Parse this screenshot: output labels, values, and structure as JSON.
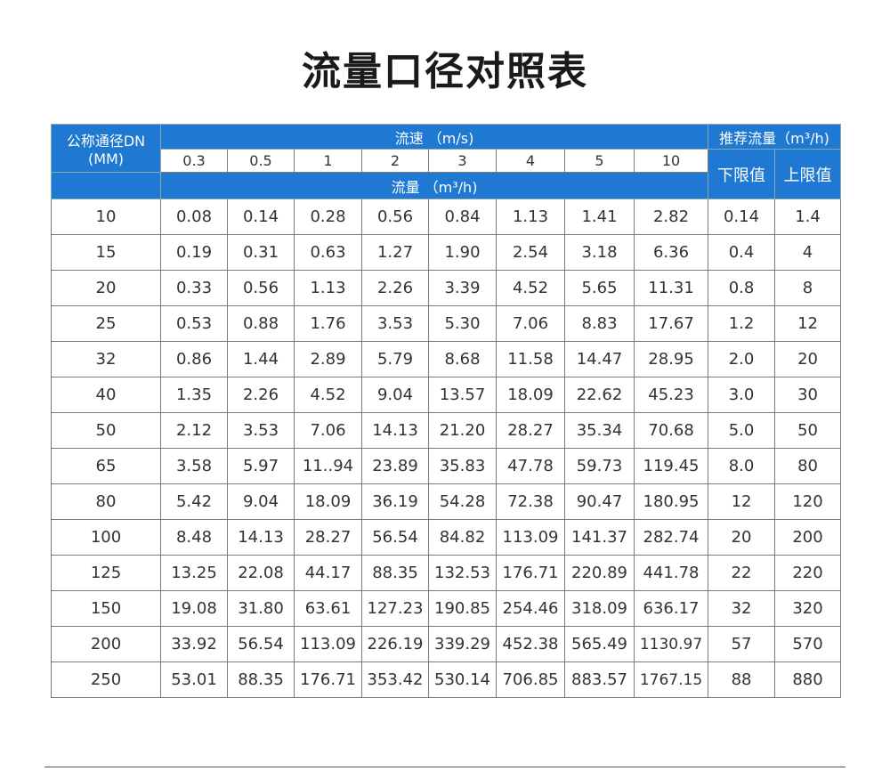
{
  "title": "流量口径对照表",
  "header": {
    "dn_label": "公称通径DN",
    "dn_unit": "(MM)",
    "speed_label": "流速 （m/s)",
    "speeds": [
      "0.3",
      "0.5",
      "1",
      "2",
      "3",
      "4",
      "5",
      "10"
    ],
    "flow_label": "流量 （m³/h)",
    "recommended_label": "推荐流量（m³/h)",
    "lower_label": "下限值",
    "upper_label": "上限值"
  },
  "rows": [
    [
      "10",
      "0.08",
      "0.14",
      "0.28",
      "0.56",
      "0.84",
      "1.13",
      "1.41",
      "2.82",
      "0.14",
      "1.4"
    ],
    [
      "15",
      "0.19",
      "0.31",
      "0.63",
      "1.27",
      "1.90",
      "2.54",
      "3.18",
      "6.36",
      "0.4",
      "4"
    ],
    [
      "20",
      "0.33",
      "0.56",
      "1.13",
      "2.26",
      "3.39",
      "4.52",
      "5.65",
      "11.31",
      "0.8",
      "8"
    ],
    [
      "25",
      "0.53",
      "0.88",
      "1.76",
      "3.53",
      "5.30",
      "7.06",
      "8.83",
      "17.67",
      "1.2",
      "12"
    ],
    [
      "32",
      "0.86",
      "1.44",
      "2.89",
      "5.79",
      "8.68",
      "11.58",
      "14.47",
      "28.95",
      "2.0",
      "20"
    ],
    [
      "40",
      "1.35",
      "2.26",
      "4.52",
      "9.04",
      "13.57",
      "18.09",
      "22.62",
      "45.23",
      "3.0",
      "30"
    ],
    [
      "50",
      "2.12",
      "3.53",
      "7.06",
      "14.13",
      "21.20",
      "28.27",
      "35.34",
      "70.68",
      "5.0",
      "50"
    ],
    [
      "65",
      "3.58",
      "5.97",
      "11..94",
      "23.89",
      "35.83",
      "47.78",
      "59.73",
      "119.45",
      "8.0",
      "80"
    ],
    [
      "80",
      "5.42",
      "9.04",
      "18.09",
      "36.19",
      "54.28",
      "72.38",
      "90.47",
      "180.95",
      "12",
      "120"
    ],
    [
      "100",
      "8.48",
      "14.13",
      "28.27",
      "56.54",
      "84.82",
      "113.09",
      "141.37",
      "282.74",
      "20",
      "200"
    ],
    [
      "125",
      "13.25",
      "22.08",
      "44.17",
      "88.35",
      "132.53",
      "176.71",
      "220.89",
      "441.78",
      "22",
      "220"
    ],
    [
      "150",
      "19.08",
      "31.80",
      "63.61",
      "127.23",
      "190.85",
      "254.46",
      "318.09",
      "636.17",
      "32",
      "320"
    ],
    [
      "200",
      "33.92",
      "56.54",
      "113.09",
      "226.19",
      "339.29",
      "452.38",
      "565.49",
      "1130.97",
      "57",
      "570"
    ],
    [
      "250",
      "53.01",
      "88.35",
      "176.71",
      "353.42",
      "530.14",
      "706.85",
      "883.57",
      "1767.15",
      "88",
      "880"
    ]
  ]
}
